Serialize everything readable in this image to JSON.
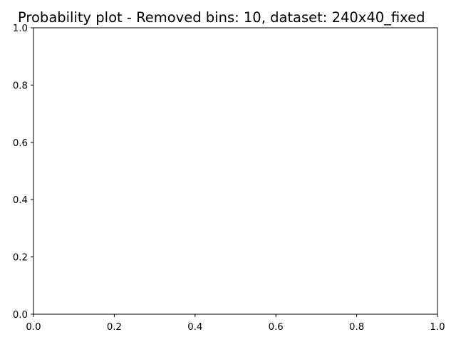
{
  "chart_data": {
    "type": "scatter",
    "title": "Probability plot - Removed bins: 10, dataset: 240x40_fixed",
    "xlabel": "",
    "ylabel": "",
    "xlim": [
      0,
      1
    ],
    "ylim": [
      0,
      1
    ],
    "x_ticks": [
      0.0,
      0.2,
      0.4,
      0.6,
      0.8,
      1.0
    ],
    "y_ticks": [
      0.0,
      0.2,
      0.4,
      0.6,
      0.8,
      1.0
    ],
    "x_tick_labels": [
      "0.0",
      "0.2",
      "0.4",
      "0.6",
      "0.8",
      "1.0"
    ],
    "y_tick_labels": [
      "0.0",
      "0.2",
      "0.4",
      "0.6",
      "0.8",
      "1.0"
    ],
    "series": [],
    "grid": false,
    "legend": "none",
    "colors": {
      "axes": "#000000",
      "background": "#ffffff",
      "text": "#000000"
    }
  }
}
